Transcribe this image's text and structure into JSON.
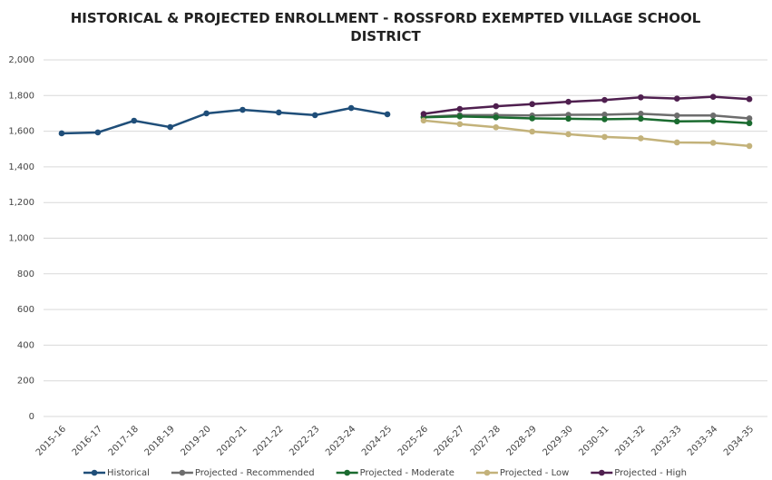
{
  "chart_data": {
    "type": "line",
    "title": "HISTORICAL & PROJECTED ENROLLMENT - ROSSFORD EXEMPTED VILLAGE SCHOOL DISTRICT",
    "categories": [
      "2015-16",
      "2016-17",
      "2017-18",
      "2018-19",
      "2019-20",
      "2020-21",
      "2021-22",
      "2022-23",
      "2023-24",
      "2024-25",
      "2025-26",
      "2026-27",
      "2027-28",
      "2028-29",
      "2029-30",
      "2030-31",
      "2031-32",
      "2032-33",
      "2033-34",
      "2034-35"
    ],
    "series": [
      {
        "name": "Historical",
        "color": "#1f4e79",
        "values": [
          1588,
          1593,
          1659,
          1623,
          1700,
          1720,
          1705,
          1690,
          1730,
          1695,
          null,
          null,
          null,
          null,
          null,
          null,
          null,
          null,
          null,
          null
        ]
      },
      {
        "name": "Projected - Recommended",
        "color": "#6d6d6d",
        "values": [
          null,
          null,
          null,
          null,
          null,
          null,
          null,
          null,
          null,
          null,
          1680,
          1690,
          1690,
          1688,
          1692,
          1693,
          1698,
          1688,
          1688,
          1672
        ]
      },
      {
        "name": "Projected - Moderate",
        "color": "#1a6b2f",
        "values": [
          null,
          null,
          null,
          null,
          null,
          null,
          null,
          null,
          null,
          null,
          1678,
          1683,
          1678,
          1672,
          1670,
          1667,
          1670,
          1655,
          1657,
          1645
        ]
      },
      {
        "name": "Projected - Low",
        "color": "#c3b27a",
        "values": [
          null,
          null,
          null,
          null,
          null,
          null,
          null,
          null,
          null,
          null,
          1660,
          1640,
          1622,
          1598,
          1583,
          1568,
          1560,
          1537,
          1535,
          1517
        ]
      },
      {
        "name": "Projected - High",
        "color": "#4f1f4f",
        "values": [
          null,
          null,
          null,
          null,
          null,
          null,
          null,
          null,
          null,
          null,
          1697,
          1725,
          1740,
          1752,
          1765,
          1775,
          1790,
          1783,
          1793,
          1780
        ]
      }
    ],
    "ylim": [
      0,
      2000
    ],
    "yticks": [
      0,
      200,
      400,
      600,
      800,
      {
        "value": 1000,
        "label": "1,000"
      },
      {
        "value": 1200,
        "label": "1,200"
      },
      {
        "value": 1400,
        "label": "1,400"
      },
      {
        "value": 1600,
        "label": "1,600"
      },
      {
        "value": 1800,
        "label": "1,800"
      },
      {
        "value": 2000,
        "label": "2,000"
      }
    ],
    "grid": true,
    "legend": "bottom"
  }
}
